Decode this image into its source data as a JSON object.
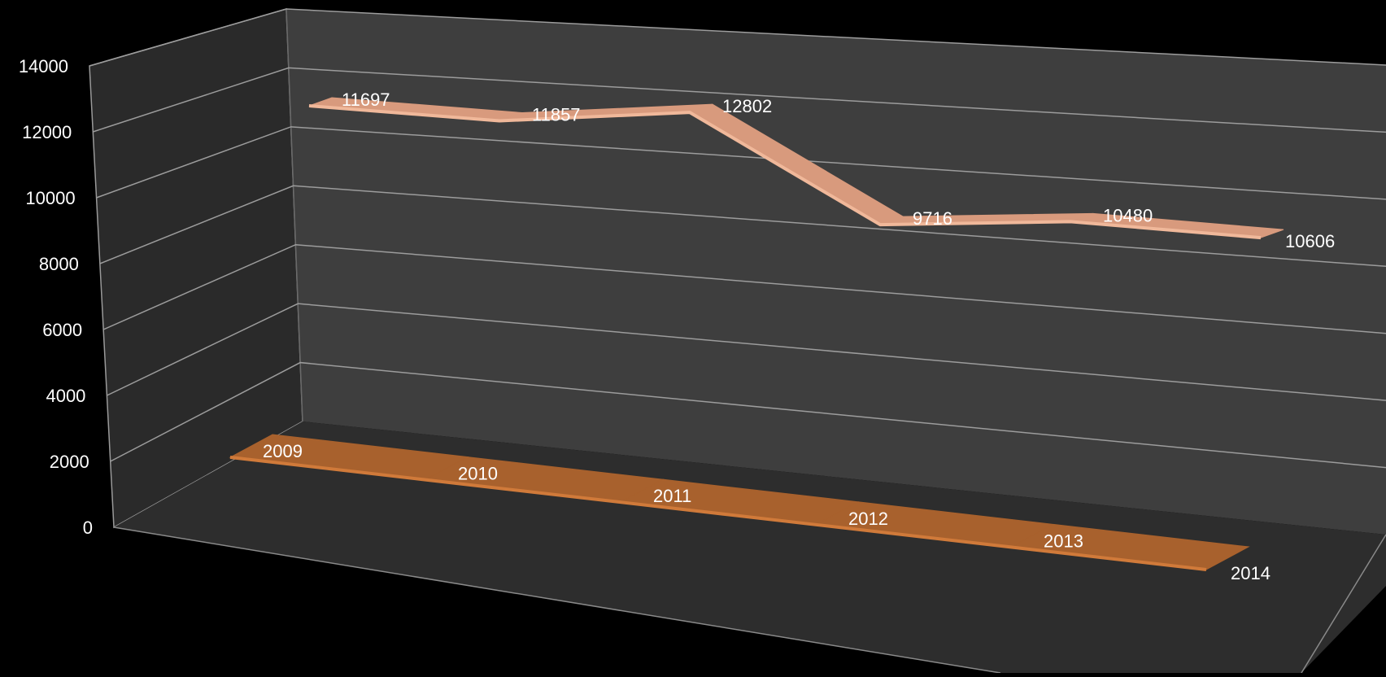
{
  "chart_data": {
    "type": "line",
    "style": "3d-ribbon",
    "title": "",
    "xlabel": "",
    "ylabel": "",
    "ylim": [
      0,
      14000
    ],
    "yticks": [
      0,
      2000,
      4000,
      6000,
      8000,
      10000,
      12000,
      14000
    ],
    "grid": true,
    "legend": "none",
    "background_color": "#000000",
    "series": [
      {
        "values": [
          11697,
          11857,
          12802,
          9716,
          10480,
          10606
        ],
        "data_labels": [
          "11697",
          "11857",
          "12802",
          "9716",
          "10480",
          "10606"
        ],
        "color": "#d89a7d"
      },
      {
        "values": [
          2009,
          2010,
          2011,
          2012,
          2013,
          2014
        ],
        "data_labels": [
          "2009",
          "2010",
          "2011",
          "2012",
          "2013",
          "2014"
        ],
        "color": "#a8612d"
      }
    ]
  }
}
